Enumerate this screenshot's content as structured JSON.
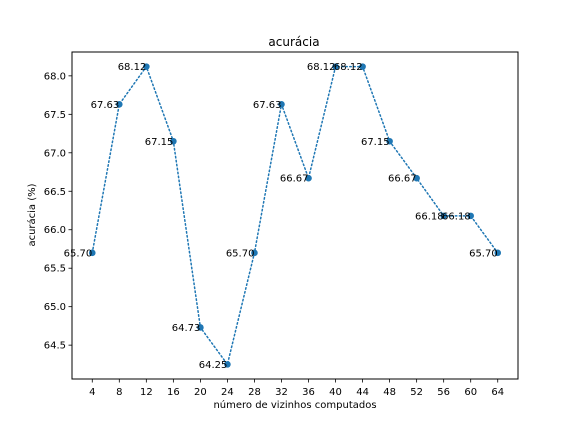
{
  "chart_data": {
    "type": "line",
    "title": "acurácia",
    "xlabel": "número de vizinhos computados",
    "ylabel": "acurácia (%)",
    "x": [
      4,
      8,
      12,
      16,
      20,
      24,
      28,
      32,
      36,
      40,
      44,
      48,
      52,
      56,
      60,
      64
    ],
    "x_ticks": [
      4,
      8,
      12,
      16,
      20,
      24,
      28,
      32,
      36,
      40,
      44,
      48,
      52,
      56,
      60,
      64
    ],
    "xlim": [
      1,
      67
    ],
    "y_ticks": [
      64.5,
      65.0,
      65.5,
      66.0,
      66.5,
      67.0,
      67.5,
      68.0
    ],
    "y_tick_labels": [
      "64.5",
      "65.0",
      "65.5",
      "66.0",
      "66.5",
      "67.0",
      "67.5",
      "68.0"
    ],
    "ylim": [
      64.06,
      68.31
    ],
    "grid": false,
    "series": [
      {
        "values": [
          65.7,
          67.63,
          68.12,
          67.15,
          64.73,
          64.25,
          65.7,
          67.63,
          66.67,
          68.12,
          68.12,
          67.15,
          66.67,
          66.18,
          66.18,
          65.7
        ],
        "labels": [
          "65.70",
          "67.63",
          "68.12",
          "67.15",
          "64.73",
          "64.25",
          "65.70",
          "67.63",
          "66.67",
          "68.12",
          "68.12",
          "67.15",
          "66.67",
          "66.18",
          "66.18",
          "65.70"
        ],
        "color": "#1f77b4",
        "line_style": "dotted",
        "marker": "circle"
      }
    ]
  }
}
